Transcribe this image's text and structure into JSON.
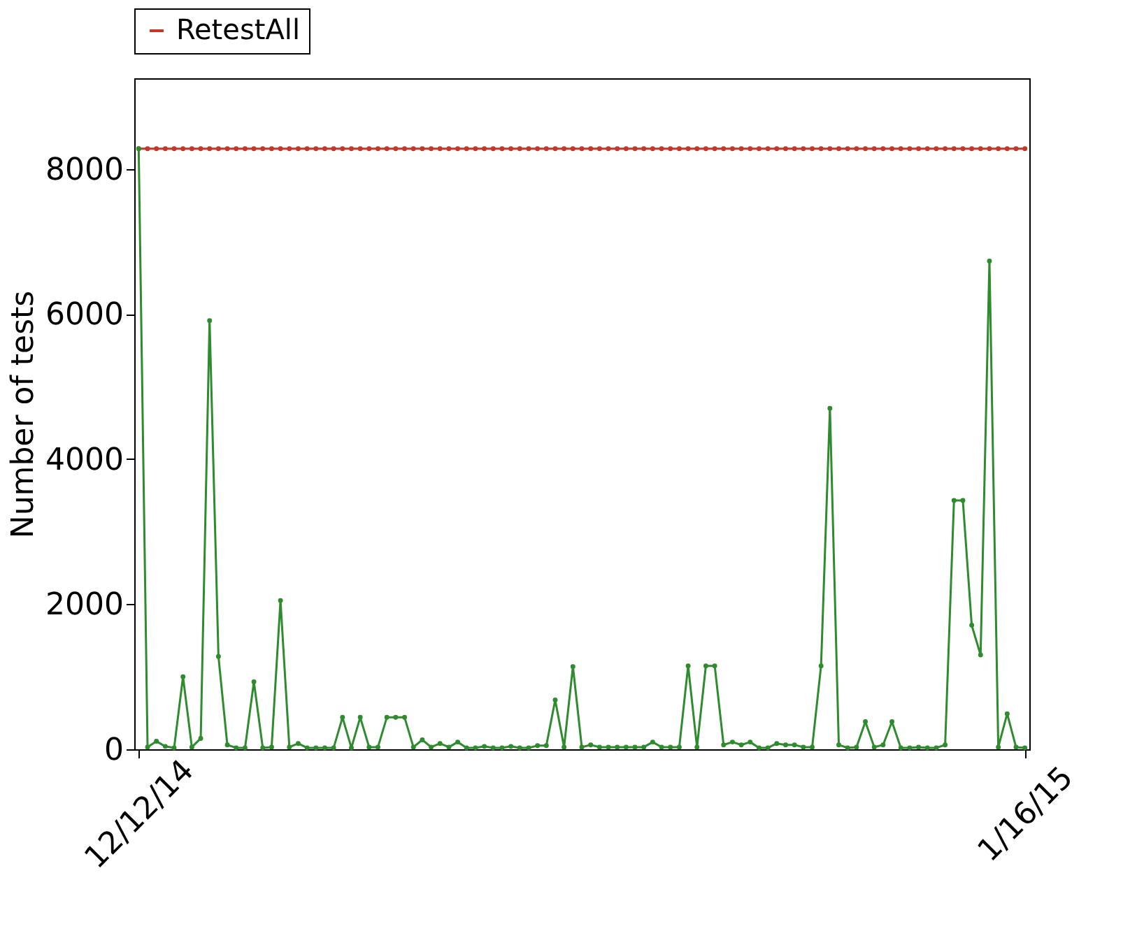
{
  "chart_data": {
    "type": "line",
    "ylabel": "Number of tests",
    "categories": [
      "12/12/14",
      null,
      null,
      null,
      null,
      null,
      null,
      null,
      null,
      null,
      null,
      null,
      null,
      null,
      null,
      null,
      null,
      null,
      null,
      null,
      null,
      null,
      null,
      null,
      null,
      null,
      null,
      null,
      null,
      null,
      null,
      null,
      null,
      null,
      null,
      null,
      null,
      null,
      null,
      null,
      null,
      null,
      null,
      null,
      null,
      null,
      null,
      null,
      null,
      null,
      null,
      null,
      null,
      null,
      null,
      null,
      null,
      null,
      null,
      null,
      null,
      null,
      null,
      null,
      null,
      null,
      null,
      null,
      null,
      null,
      null,
      null,
      null,
      null,
      null,
      null,
      null,
      null,
      null,
      null,
      null,
      null,
      null,
      null,
      null,
      null,
      null,
      null,
      null,
      null,
      null,
      null,
      null,
      null,
      null,
      null,
      null,
      null,
      null,
      null,
      "1/16/15"
    ],
    "series": [
      {
        "name": "RetestAll",
        "color": "#c0392b",
        "values": [
          8280,
          8280,
          8280,
          8280,
          8280,
          8280,
          8280,
          8280,
          8280,
          8280,
          8280,
          8280,
          8280,
          8280,
          8280,
          8280,
          8280,
          8280,
          8280,
          8280,
          8280,
          8280,
          8280,
          8280,
          8280,
          8280,
          8280,
          8280,
          8280,
          8280,
          8280,
          8280,
          8280,
          8280,
          8280,
          8280,
          8280,
          8280,
          8280,
          8280,
          8280,
          8280,
          8280,
          8280,
          8280,
          8280,
          8280,
          8280,
          8280,
          8280,
          8280,
          8280,
          8280,
          8280,
          8280,
          8280,
          8280,
          8280,
          8280,
          8280,
          8280,
          8280,
          8280,
          8280,
          8280,
          8280,
          8280,
          8280,
          8280,
          8280,
          8280,
          8280,
          8280,
          8280,
          8280,
          8280,
          8280,
          8280,
          8280,
          8280,
          8280,
          8280,
          8280,
          8280,
          8280,
          8280,
          8280,
          8280,
          8280,
          8280,
          8280,
          8280,
          8280,
          8280,
          8280,
          8280,
          8280,
          8280,
          8280,
          8280,
          8280
        ]
      },
      {
        "color": "#2e8b2e",
        "values": [
          8280,
          30,
          110,
          40,
          20,
          1000,
          30,
          150,
          5910,
          1280,
          60,
          20,
          20,
          930,
          20,
          30,
          2050,
          30,
          80,
          20,
          20,
          20,
          20,
          440,
          20,
          440,
          30,
          30,
          440,
          440,
          440,
          30,
          130,
          30,
          80,
          30,
          100,
          20,
          20,
          40,
          20,
          20,
          40,
          20,
          20,
          50,
          50,
          680,
          30,
          1140,
          30,
          60,
          30,
          30,
          30,
          30,
          30,
          30,
          100,
          30,
          30,
          30,
          1150,
          30,
          1150,
          1150,
          60,
          100,
          60,
          100,
          20,
          20,
          80,
          60,
          60,
          30,
          30,
          1150,
          4700,
          60,
          20,
          30,
          380,
          30,
          60,
          380,
          20,
          20,
          30,
          20,
          20,
          60,
          3430,
          3430,
          1710,
          1300,
          6730,
          30,
          490,
          30,
          20
        ]
      }
    ],
    "ylim": [
      0,
      9250
    ],
    "yticks": [
      0,
      2000,
      4000,
      6000,
      8000
    ],
    "grid": false,
    "legend": "top",
    "marker": "circle"
  }
}
